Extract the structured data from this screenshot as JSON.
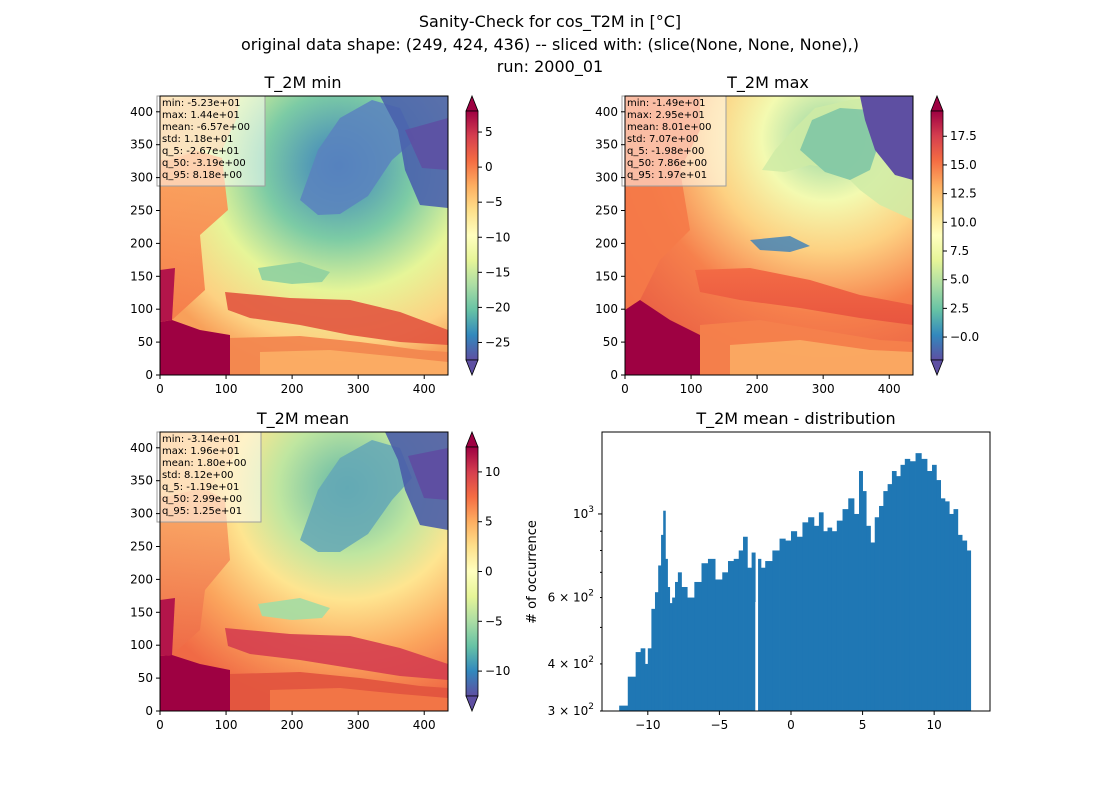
{
  "figure": {
    "suptitle_lines": [
      "Sanity-Check for cos_T2M in [°C]",
      "original data shape: (249, 424, 436) -- sliced with: (slice(None, None, None),)",
      "run: 2000_01"
    ]
  },
  "chart_data": [
    {
      "type": "heatmap",
      "title": "T_2M min",
      "xlim": [
        0,
        436
      ],
      "ylim": [
        0,
        424
      ],
      "xticks": [
        0,
        100,
        200,
        300,
        400
      ],
      "yticks": [
        0,
        50,
        100,
        150,
        200,
        250,
        300,
        350,
        400
      ],
      "colormap": "Spectral_r",
      "colorbar": {
        "range": [
          -27.5,
          8.0
        ],
        "ticks": [
          5,
          0,
          -5,
          -10,
          -15,
          -20,
          -25
        ],
        "tick_labels": [
          "5",
          "0",
          "−5",
          "−10",
          "−15",
          "−20",
          "−25"
        ],
        "extend": "both"
      },
      "stats": [
        "min: -5.23e+01",
        "max: 1.44e+01",
        "mean: -6.57e+00",
        "std: 1.18e+01",
        "q_5: -2.67e+01",
        "q_50: -3.19e+00",
        "q_95: 8.18e+00"
      ]
    },
    {
      "type": "heatmap",
      "title": "T_2M max",
      "xlim": [
        0,
        436
      ],
      "ylim": [
        0,
        424
      ],
      "xticks": [
        0,
        100,
        200,
        300,
        400
      ],
      "yticks": [
        0,
        50,
        100,
        150,
        200,
        250,
        300,
        350,
        400
      ],
      "colormap": "Spectral_r",
      "colorbar": {
        "range": [
          -2.0,
          19.7
        ],
        "ticks": [
          17.5,
          15.0,
          12.5,
          10.0,
          7.5,
          5.0,
          2.5,
          -0.0
        ],
        "tick_labels": [
          "17.5",
          "15.0",
          "12.5",
          "10.0",
          "7.5",
          "5.0",
          "2.5",
          "−0.0"
        ],
        "extend": "both"
      },
      "stats": [
        "min: -1.49e+01",
        "max: 2.95e+01",
        "mean: 8.01e+00",
        "std: 7.07e+00",
        "q_5: -1.98e+00",
        "q_50: 7.86e+00",
        "q_95: 1.97e+01"
      ]
    },
    {
      "type": "heatmap",
      "title": "T_2M mean",
      "xlim": [
        0,
        436
      ],
      "ylim": [
        0,
        424
      ],
      "xticks": [
        0,
        100,
        200,
        300,
        400
      ],
      "yticks": [
        0,
        50,
        100,
        150,
        200,
        250,
        300,
        350,
        400
      ],
      "colormap": "Spectral_r",
      "colorbar": {
        "range": [
          -12.5,
          12.5
        ],
        "ticks": [
          10,
          5,
          0,
          -5,
          -10
        ],
        "tick_labels": [
          "10",
          "5",
          "0",
          "−5",
          "−10"
        ],
        "extend": "both"
      },
      "stats": [
        "min: -3.14e+01",
        "max: 1.96e+01",
        "mean: 1.80e+00",
        "std: 8.12e+00",
        "q_5: -1.19e+01",
        "q_50: 2.99e+00",
        "q_95: 1.25e+01"
      ]
    },
    {
      "type": "bar",
      "title": "T_2M mean - distribution",
      "ylabel": "# of occurrence",
      "xlim": [
        -13.2,
        13.9
      ],
      "ylim": [
        300,
        1650
      ],
      "yscale": "log",
      "xticks": [
        -10,
        -5,
        0,
        5,
        10
      ],
      "xtick_labels": [
        "−10",
        "−5",
        "0",
        "5",
        "10"
      ],
      "ytick_labels": [
        {
          "value": 1000,
          "base": "10",
          "exp": "3"
        },
        {
          "value": 600,
          "mant": "6 × 10",
          "exp": "2"
        },
        {
          "value": 400,
          "mant": "4 × 10",
          "exp": "2"
        },
        {
          "value": 300,
          "mant": "3 × 10",
          "exp": "2"
        }
      ],
      "bar_color": "#1f77b4",
      "x": [
        -11.8,
        -11.0,
        -10.7,
        -10.3,
        -10.1,
        -9.9,
        -9.6,
        -9.4,
        -9.15,
        -9.0,
        -8.85,
        -8.7,
        -8.55,
        -8.4,
        -8.2,
        -8.0,
        -7.8,
        -7.5,
        -7.0,
        -6.5,
        -6.0,
        -5.6,
        -5.0,
        -4.6,
        -4.2,
        -3.8,
        -3.5,
        -3.2,
        -2.9,
        -2.6,
        -2.4,
        -2.2,
        -2.0,
        -1.6,
        -1.0,
        -0.6,
        -0.2,
        0.2,
        0.6,
        1.0,
        1.4,
        1.8,
        2.1,
        2.4,
        2.7,
        3.0,
        3.4,
        3.8,
        4.2,
        4.6,
        4.9,
        5.1,
        5.4,
        5.7,
        6.0,
        6.3,
        6.6,
        6.9,
        7.2,
        7.5,
        7.8,
        8.1,
        8.5,
        8.9,
        9.3,
        9.7,
        10.0,
        10.3,
        10.6,
        10.9,
        11.2,
        11.5,
        11.8,
        12.1,
        12.45
      ],
      "values": [
        310,
        370,
        430,
        440,
        400,
        440,
        560,
        620,
        730,
        880,
        1020,
        760,
        640,
        580,
        600,
        660,
        700,
        640,
        600,
        660,
        740,
        760,
        670,
        700,
        750,
        760,
        800,
        870,
        720,
        790,
        300,
        760,
        720,
        750,
        800,
        860,
        850,
        900,
        870,
        950,
        980,
        930,
        1010,
        900,
        920,
        900,
        960,
        1030,
        1100,
        1000,
        1300,
        1150,
        930,
        840,
        980,
        1050,
        1150,
        1200,
        1300,
        1260,
        1350,
        1400,
        1380,
        1450,
        1400,
        1300,
        1350,
        1230,
        1100,
        1080,
        1000,
        1030,
        880,
        850,
        800
      ]
    }
  ]
}
